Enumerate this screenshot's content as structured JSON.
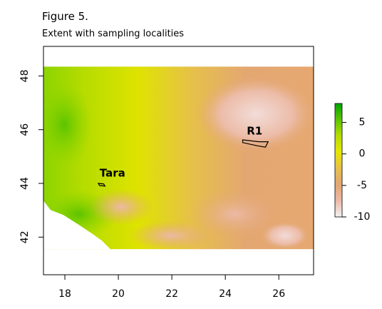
{
  "figure": {
    "title": "Figure 5.",
    "subtitle": "Extent with sampling localities"
  },
  "map": {
    "x_ticks": [
      "18",
      "20",
      "22",
      "24",
      "26"
    ],
    "y_ticks": [
      "42",
      "44",
      "46",
      "48"
    ],
    "x_range": [
      17.2,
      27.3
    ],
    "y_range": [
      40.6,
      49.1
    ],
    "raster_extent": {
      "x": [
        17.2,
        27.3
      ],
      "y": [
        41.55,
        48.35
      ]
    },
    "localities": [
      {
        "name": "Tara",
        "polygon": [
          [
            19.25,
            44.0
          ],
          [
            19.45,
            43.98
          ],
          [
            19.5,
            43.9
          ],
          [
            19.3,
            43.92
          ]
        ],
        "label_at": [
          19.3,
          44.25
        ]
      },
      {
        "name": "R1",
        "polygon": [
          [
            24.65,
            45.62
          ],
          [
            25.25,
            45.55
          ],
          [
            25.6,
            45.55
          ],
          [
            25.5,
            45.35
          ],
          [
            25.2,
            45.4
          ],
          [
            24.65,
            45.52
          ]
        ],
        "label_at": [
          24.8,
          45.82
        ]
      }
    ]
  },
  "colorbar": {
    "ticks": [
      "5",
      "0",
      "-5",
      "-10"
    ],
    "tick_values": [
      5,
      0,
      -5,
      -10
    ],
    "range": [
      -10,
      8
    ],
    "colors": [
      "#f2f2f2",
      "#ecb9a6",
      "#e3a772",
      "#e6c04a",
      "#e6e600",
      "#b6dc00",
      "#5cc400",
      "#00a600"
    ]
  }
}
